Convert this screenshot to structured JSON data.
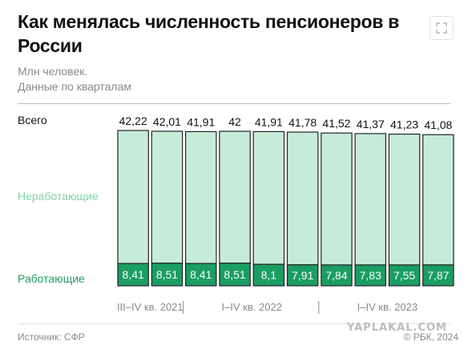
{
  "header": {
    "title": "Как менялась численность пенсионеров в России",
    "subtitle_line1": "Млн человек.",
    "subtitle_line2": "Данные по кварталам",
    "expand_icon": "expand-icon"
  },
  "labels": {
    "total": "Всего",
    "nonworking": "Неработающие",
    "working": "Работающие"
  },
  "colors": {
    "nonworking": "#c6ecd9",
    "working": "#1a9e63",
    "bar_border": "#222222"
  },
  "chart_data": {
    "type": "bar",
    "stacked": true,
    "x": [
      "III",
      "IV",
      "I",
      "II",
      "III",
      "IV",
      "I",
      "II",
      "III",
      "IV"
    ],
    "period_groups": [
      {
        "label": "III–IV кв. 2021",
        "count": 2
      },
      {
        "label": "I–IV кв. 2022",
        "count": 4
      },
      {
        "label": "I–IV кв. 2023",
        "count": 4
      }
    ],
    "totals": [
      "42,22",
      "42,01",
      "41,91",
      "42",
      "41,91",
      "41,78",
      "41,52",
      "41,37",
      "41,23",
      "41,08"
    ],
    "series": [
      {
        "name": "Работающие",
        "values": [
          8.41,
          8.51,
          8.41,
          8.51,
          8.1,
          7.91,
          7.84,
          7.83,
          7.55,
          7.87
        ],
        "labels": [
          "8,41",
          "8,51",
          "8,41",
          "8,51",
          "8,1",
          "7,91",
          "7,84",
          "7,83",
          "7,55",
          "7,87"
        ]
      },
      {
        "name": "Неработающие",
        "values": [
          33.81,
          33.5,
          33.5,
          33.49,
          33.81,
          33.87,
          33.68,
          33.54,
          33.68,
          33.21
        ]
      }
    ]
  },
  "footer": {
    "source": "Источник: СФР",
    "credit": "© РБК, 2024",
    "watermark": "YAPLAKAL.COM"
  }
}
